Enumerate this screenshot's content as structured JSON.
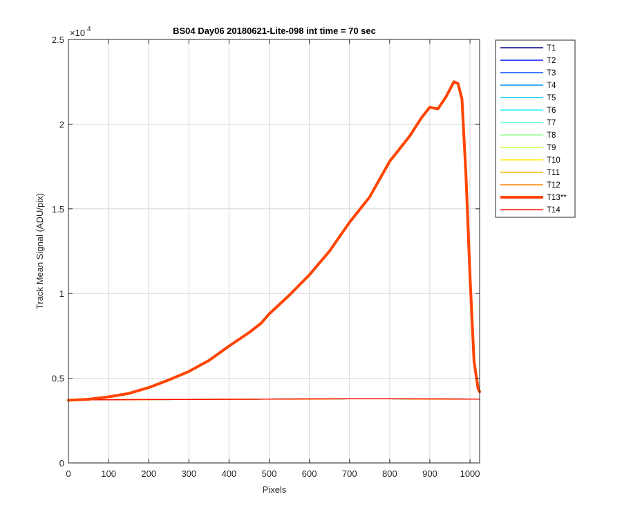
{
  "chart_data": {
    "type": "line",
    "title": "BS04 Day06 20180621-Lite-098 int time = 70 sec",
    "xlabel": "Pixels",
    "ylabel": "Track Mean Signal (ADU/pix)",
    "y_exponent_label": "×10",
    "y_exponent": "4",
    "xlim": [
      0,
      1024
    ],
    "ylim": [
      0,
      25000
    ],
    "xticks": [
      0,
      100,
      200,
      300,
      400,
      500,
      600,
      700,
      800,
      900,
      1000
    ],
    "yticks": [
      0,
      5000,
      10000,
      15000,
      20000,
      25000
    ],
    "ytick_labels": [
      "0",
      "0.5",
      "1",
      "1.5",
      "2",
      "2.5"
    ],
    "grid": true,
    "legend_position": "outside-right",
    "baseline_x": [
      0,
      100,
      200,
      300,
      400,
      500,
      600,
      700,
      800,
      900,
      1000,
      1024
    ],
    "series": [
      {
        "name": "T1",
        "color": "#00008f",
        "width": 1.5,
        "values": [
          3720,
          3730,
          3740,
          3750,
          3760,
          3770,
          3780,
          3790,
          3790,
          3780,
          3770,
          3770
        ]
      },
      {
        "name": "T2",
        "color": "#0010ff",
        "width": 1.5,
        "values": [
          3720,
          3730,
          3740,
          3750,
          3760,
          3770,
          3780,
          3790,
          3790,
          3780,
          3770,
          3770
        ]
      },
      {
        "name": "T3",
        "color": "#0050ff",
        "width": 1.5,
        "values": [
          3720,
          3730,
          3740,
          3750,
          3760,
          3770,
          3780,
          3790,
          3790,
          3780,
          3770,
          3770
        ]
      },
      {
        "name": "T4",
        "color": "#0090ff",
        "width": 1.5,
        "values": [
          3720,
          3730,
          3740,
          3750,
          3760,
          3770,
          3780,
          3790,
          3790,
          3780,
          3770,
          3770
        ]
      },
      {
        "name": "T5",
        "color": "#00c8ff",
        "width": 1.5,
        "values": [
          3720,
          3730,
          3740,
          3750,
          3760,
          3770,
          3780,
          3790,
          3790,
          3780,
          3770,
          3770
        ]
      },
      {
        "name": "T6",
        "color": "#20f0ff",
        "width": 1.5,
        "values": [
          3720,
          3730,
          3740,
          3750,
          3760,
          3770,
          3780,
          3790,
          3790,
          3780,
          3770,
          3770
        ]
      },
      {
        "name": "T7",
        "color": "#60ffd0",
        "width": 1.5,
        "values": [
          3720,
          3730,
          3740,
          3750,
          3760,
          3770,
          3780,
          3790,
          3790,
          3780,
          3770,
          3770
        ]
      },
      {
        "name": "T8",
        "color": "#90ff90",
        "width": 1.5,
        "values": [
          3720,
          3730,
          3740,
          3750,
          3760,
          3770,
          3780,
          3790,
          3790,
          3780,
          3770,
          3770
        ]
      },
      {
        "name": "T9",
        "color": "#c8ff40",
        "width": 1.5,
        "values": [
          3720,
          3730,
          3740,
          3750,
          3760,
          3770,
          3780,
          3790,
          3790,
          3780,
          3770,
          3770
        ]
      },
      {
        "name": "T10",
        "color": "#ffec00",
        "width": 1.5,
        "values": [
          3720,
          3730,
          3740,
          3750,
          3760,
          3770,
          3780,
          3790,
          3790,
          3780,
          3770,
          3770
        ]
      },
      {
        "name": "T11",
        "color": "#ffb800",
        "width": 1.5,
        "values": [
          3720,
          3730,
          3740,
          3750,
          3760,
          3770,
          3780,
          3790,
          3790,
          3780,
          3770,
          3770
        ]
      },
      {
        "name": "T12",
        "color": "#ff8000",
        "width": 1.5,
        "values": [
          3720,
          3730,
          3740,
          3750,
          3760,
          3770,
          3780,
          3790,
          3790,
          3780,
          3770,
          3770
        ]
      },
      {
        "name": "T13**",
        "color": "#ff4400",
        "width": 4,
        "x": [
          0,
          50,
          100,
          150,
          200,
          250,
          300,
          350,
          400,
          450,
          480,
          500,
          550,
          600,
          650,
          700,
          750,
          800,
          850,
          880,
          900,
          920,
          940,
          960,
          970,
          980,
          990,
          1000,
          1010,
          1020,
          1024
        ],
        "y": [
          3700,
          3760,
          3900,
          4100,
          4450,
          4900,
          5400,
          6050,
          6900,
          7700,
          8250,
          8800,
          9900,
          11100,
          12500,
          14200,
          15700,
          17800,
          19300,
          20400,
          21000,
          20900,
          21600,
          22500,
          22400,
          21500,
          17000,
          11000,
          6000,
          4400,
          4200
        ]
      },
      {
        "name": "T14",
        "color": "#ff1000",
        "width": 1.5,
        "values": [
          3720,
          3730,
          3740,
          3750,
          3760,
          3770,
          3780,
          3790,
          3790,
          3780,
          3770,
          3770
        ]
      }
    ]
  }
}
